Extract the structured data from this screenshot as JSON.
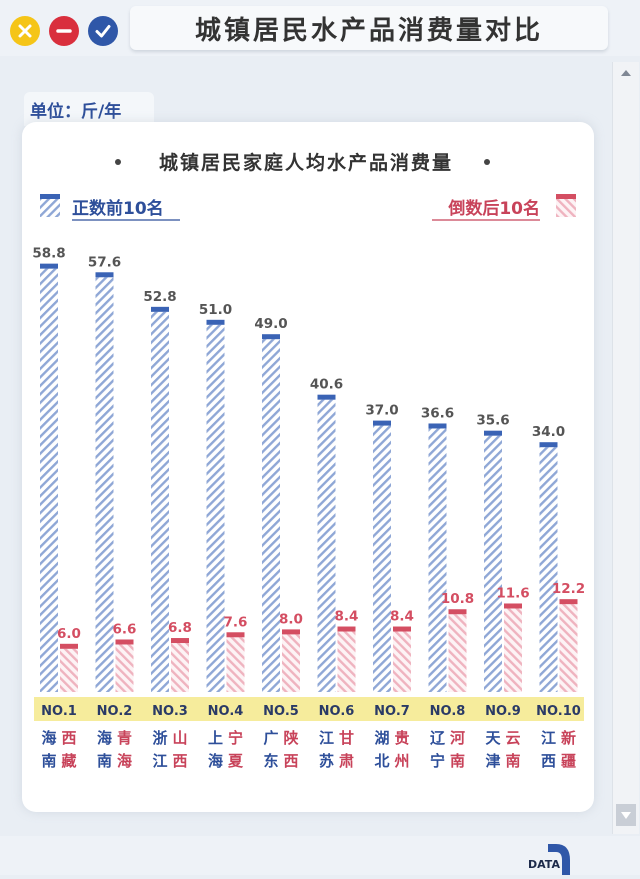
{
  "window": {
    "title": "城镇居民水产品消费量对比",
    "controls": [
      {
        "name": "close",
        "icon": "close-icon",
        "color": "#f5c518"
      },
      {
        "name": "minimize",
        "icon": "minus-icon",
        "color": "#d92f3d"
      },
      {
        "name": "confirm",
        "icon": "check-icon",
        "color": "#2f57a8"
      }
    ]
  },
  "unit_label": "单位：斤/年",
  "logo_text": "DATA",
  "chart_data": {
    "type": "bar",
    "title": "城镇居民家庭人均水产品消费量",
    "legend": {
      "placement": "top",
      "top10_label": "正数前10名",
      "bottom10_label": "倒数后10名"
    },
    "ranks": [
      "NO.1",
      "NO.2",
      "NO.3",
      "NO.4",
      "NO.5",
      "NO.6",
      "NO.7",
      "NO.8",
      "NO.9",
      "NO.10"
    ],
    "series": [
      {
        "name": "正数前10名",
        "color": "#3a63b5",
        "regions": [
          [
            "海",
            "南"
          ],
          [
            "海",
            "南"
          ],
          [
            "浙",
            "江"
          ],
          [
            "上",
            "海"
          ],
          [
            "广",
            "东"
          ],
          [
            "江",
            "苏"
          ],
          [
            "湖",
            "北"
          ],
          [
            "辽",
            "宁"
          ],
          [
            "天",
            "津"
          ],
          [
            "江",
            "西"
          ]
        ],
        "values": [
          58.8,
          57.6,
          52.8,
          51.0,
          49.0,
          40.6,
          37.0,
          36.6,
          35.6,
          34.0
        ]
      },
      {
        "name": "倒数后10名",
        "color": "#d44e62",
        "regions": [
          [
            "西",
            "藏"
          ],
          [
            "青",
            "海"
          ],
          [
            "山",
            "西"
          ],
          [
            "宁",
            "夏"
          ],
          [
            "陕",
            "西"
          ],
          [
            "甘",
            "肃"
          ],
          [
            "贵",
            "州"
          ],
          [
            "河",
            "南"
          ],
          [
            "云",
            "南"
          ],
          [
            "新",
            "疆"
          ]
        ],
        "values": [
          6.0,
          6.6,
          6.8,
          7.6,
          8.0,
          8.4,
          8.4,
          10.8,
          11.6,
          12.2
        ]
      }
    ],
    "value_labels": {
      "top": [
        "58.8",
        "57.6",
        "52.8",
        "51.0",
        "49.0",
        "40.6",
        "37.0",
        "36.6",
        "35.6",
        "34.0"
      ],
      "bottom": [
        "6.0",
        "6.6",
        "6.8",
        "7.6",
        "8.0",
        "8.4",
        "8.4",
        "10.8",
        "11.6",
        "12.2"
      ]
    },
    "rank_band_color": "#f6ec9c",
    "grid": false
  }
}
